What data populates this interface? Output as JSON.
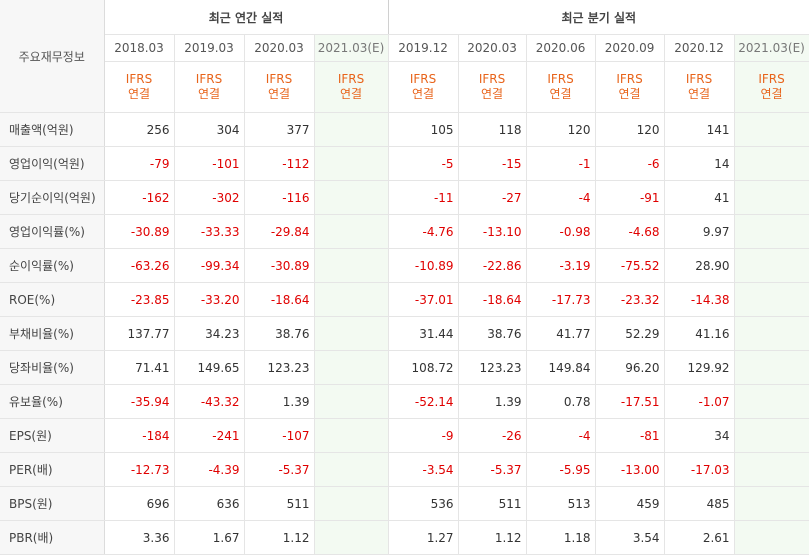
{
  "header": {
    "corner_label": "주요재무정보",
    "annual_title": "최근 연간 실적",
    "quarter_title": "최근 분기 실적",
    "annual_periods": [
      "2018.03",
      "2019.03",
      "2020.03",
      "2021.03(E)"
    ],
    "quarter_periods": [
      "2019.12",
      "2020.03",
      "2020.06",
      "2020.09",
      "2020.12",
      "2021.03(E)"
    ],
    "standard_line1": "IFRS",
    "standard_line2": "연결"
  },
  "rows": [
    {
      "label": "매출액(억원)",
      "annual": [
        "256",
        "304",
        "377",
        ""
      ],
      "quarter": [
        "105",
        "118",
        "120",
        "120",
        "141",
        ""
      ]
    },
    {
      "label": "영업이익(억원)",
      "annual": [
        "-79",
        "-101",
        "-112",
        ""
      ],
      "quarter": [
        "-5",
        "-15",
        "-1",
        "-6",
        "14",
        ""
      ]
    },
    {
      "label": "당기순이익(억원)",
      "annual": [
        "-162",
        "-302",
        "-116",
        ""
      ],
      "quarter": [
        "-11",
        "-27",
        "-4",
        "-91",
        "41",
        ""
      ]
    },
    {
      "label": "영업이익률(%)",
      "annual": [
        "-30.89",
        "-33.33",
        "-29.84",
        ""
      ],
      "quarter": [
        "-4.76",
        "-13.10",
        "-0.98",
        "-4.68",
        "9.97",
        ""
      ]
    },
    {
      "label": "순이익률(%)",
      "annual": [
        "-63.26",
        "-99.34",
        "-30.89",
        ""
      ],
      "quarter": [
        "-10.89",
        "-22.86",
        "-3.19",
        "-75.52",
        "28.90",
        ""
      ]
    },
    {
      "label": "ROE(%)",
      "annual": [
        "-23.85",
        "-33.20",
        "-18.64",
        ""
      ],
      "quarter": [
        "-37.01",
        "-18.64",
        "-17.73",
        "-23.32",
        "-14.38",
        ""
      ]
    },
    {
      "label": "부채비율(%)",
      "annual": [
        "137.77",
        "34.23",
        "38.76",
        ""
      ],
      "quarter": [
        "31.44",
        "38.76",
        "41.77",
        "52.29",
        "41.16",
        ""
      ]
    },
    {
      "label": "당좌비율(%)",
      "annual": [
        "71.41",
        "149.65",
        "123.23",
        ""
      ],
      "quarter": [
        "108.72",
        "123.23",
        "149.84",
        "96.20",
        "129.92",
        ""
      ]
    },
    {
      "label": "유보율(%)",
      "annual": [
        "-35.94",
        "-43.32",
        "1.39",
        ""
      ],
      "quarter": [
        "-52.14",
        "1.39",
        "0.78",
        "-17.51",
        "-1.07",
        ""
      ]
    },
    {
      "label": "EPS(원)",
      "annual": [
        "-184",
        "-241",
        "-107",
        ""
      ],
      "quarter": [
        "-9",
        "-26",
        "-4",
        "-81",
        "34",
        ""
      ]
    },
    {
      "label": "PER(배)",
      "annual": [
        "-12.73",
        "-4.39",
        "-5.37",
        ""
      ],
      "quarter": [
        "-3.54",
        "-5.37",
        "-5.95",
        "-13.00",
        "-17.03",
        ""
      ]
    },
    {
      "label": "BPS(원)",
      "annual": [
        "696",
        "636",
        "511",
        ""
      ],
      "quarter": [
        "536",
        "511",
        "513",
        "459",
        "485",
        ""
      ]
    },
    {
      "label": "PBR(배)",
      "annual": [
        "3.36",
        "1.67",
        "1.12",
        ""
      ],
      "quarter": [
        "1.27",
        "1.12",
        "1.18",
        "3.54",
        "2.61",
        ""
      ]
    }
  ]
}
